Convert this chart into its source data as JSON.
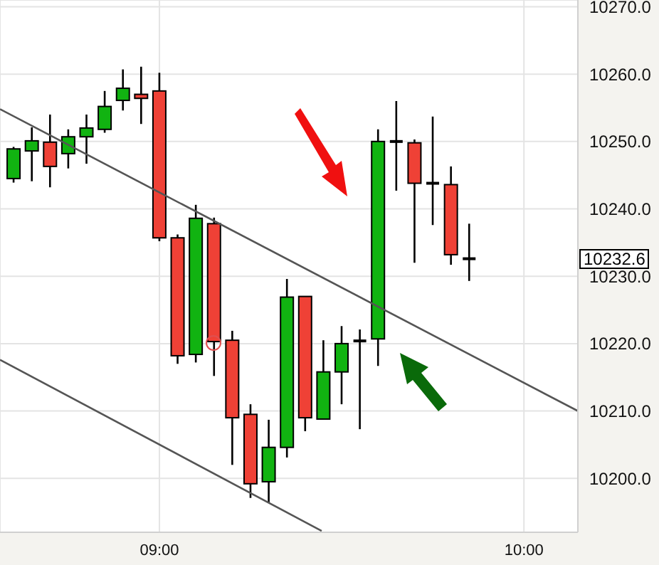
{
  "chart_data": {
    "type": "candlestick",
    "x": [
      8.6,
      8.65,
      8.7,
      8.75,
      8.8,
      8.85,
      8.9,
      8.95,
      9.0,
      9.05,
      9.1,
      9.15,
      9.2,
      9.25,
      9.3,
      9.35,
      9.4,
      9.45,
      9.5,
      9.55,
      9.6,
      9.65,
      9.7,
      9.75,
      9.8,
      9.85
    ],
    "ohlc": [
      [
        10244.5,
        10249.2,
        10243.9,
        10248.9
      ],
      [
        10248.6,
        10252.1,
        10244.1,
        10250.1
      ],
      [
        10249.9,
        10254.0,
        10243.2,
        10246.3
      ],
      [
        10248.2,
        10251.8,
        10246.0,
        10250.7
      ],
      [
        10250.7,
        10254.0,
        10246.7,
        10252.0
      ],
      [
        10251.8,
        10257.5,
        10251.3,
        10255.2
      ],
      [
        10256.1,
        10260.7,
        10254.6,
        10257.9
      ],
      [
        10257.0,
        10261.1,
        10252.6,
        10256.4
      ],
      [
        10257.5,
        10260.2,
        10235.2,
        10235.7
      ],
      [
        10235.7,
        10236.2,
        10217.0,
        10218.2
      ],
      [
        10218.4,
        10240.6,
        10217.2,
        10238.6
      ],
      [
        10237.8,
        10238.7,
        10215.2,
        10220.3
      ],
      [
        10220.5,
        10221.9,
        10202.0,
        10209.0
      ],
      [
        10209.5,
        10211.0,
        10197.1,
        10199.2
      ],
      [
        10199.5,
        10208.7,
        10196.4,
        10204.6
      ],
      [
        10204.6,
        10229.6,
        10203.1,
        10226.9
      ],
      [
        10227.0,
        10227.0,
        10207.0,
        10209.0
      ],
      [
        10208.8,
        10220.5,
        10208.8,
        10215.8
      ],
      [
        10215.8,
        10222.6,
        10211.0,
        10220.0
      ],
      [
        10220.4,
        10222.1,
        10207.3,
        10220.4
      ],
      [
        10220.7,
        10251.8,
        10216.7,
        10250.0
      ],
      [
        10250.0,
        10256.0,
        10242.7,
        10250.0
      ],
      [
        10249.8,
        10250.3,
        10232.0,
        10243.8
      ],
      [
        10243.8,
        10253.7,
        10237.6,
        10243.8
      ],
      [
        10243.6,
        10246.3,
        10231.7,
        10233.2
      ],
      [
        10232.5,
        10237.8,
        10229.3,
        10232.6
      ]
    ],
    "colors": [
      "#11b311",
      "#11b311",
      "#ef4136",
      "#11b311",
      "#11b311",
      "#11b311",
      "#11b311",
      "#ef4136",
      "#ef4136",
      "#ef4136",
      "#11b311",
      "#ef4136",
      "#ef4136",
      "#ef4136",
      "#11b311",
      "#11b311",
      "#ef4136",
      "#11b311",
      "#11b311",
      "#000000",
      "#11b311",
      "#000000",
      "#ef4136",
      "#000000",
      "#ef4136",
      "#000000"
    ],
    "series": [
      {
        "type": "line",
        "color": "#555555",
        "x": [
          8.5625,
          10.148
        ],
        "values": [
          10254.8,
          10210.0
        ]
      },
      {
        "type": "line",
        "color": "#555555",
        "x": [
          8.5625,
          9.445
        ],
        "values": [
          10217.6,
          10192.2
        ]
      }
    ],
    "xlim": [
      8.5625,
      10.148
    ],
    "xticks": [
      {
        "value": 9,
        "label": "09:00"
      },
      {
        "value": 10,
        "label": "10:00"
      }
    ],
    "ylim": [
      10192,
      10271
    ],
    "yticks": [
      {
        "value": 10200,
        "label": "10200.0"
      },
      {
        "value": 10210,
        "label": "10210.0"
      },
      {
        "value": 10220,
        "label": "10220.0"
      },
      {
        "value": 10230,
        "label": "10230.0"
      },
      {
        "value": 10240,
        "label": "10240.0"
      },
      {
        "value": 10250,
        "label": "10250.0"
      },
      {
        "value": 10260,
        "label": "10260.0"
      },
      {
        "value": 10270,
        "label": "10270.0"
      }
    ],
    "annotations": [
      "10232.6"
    ],
    "grid": true
  }
}
